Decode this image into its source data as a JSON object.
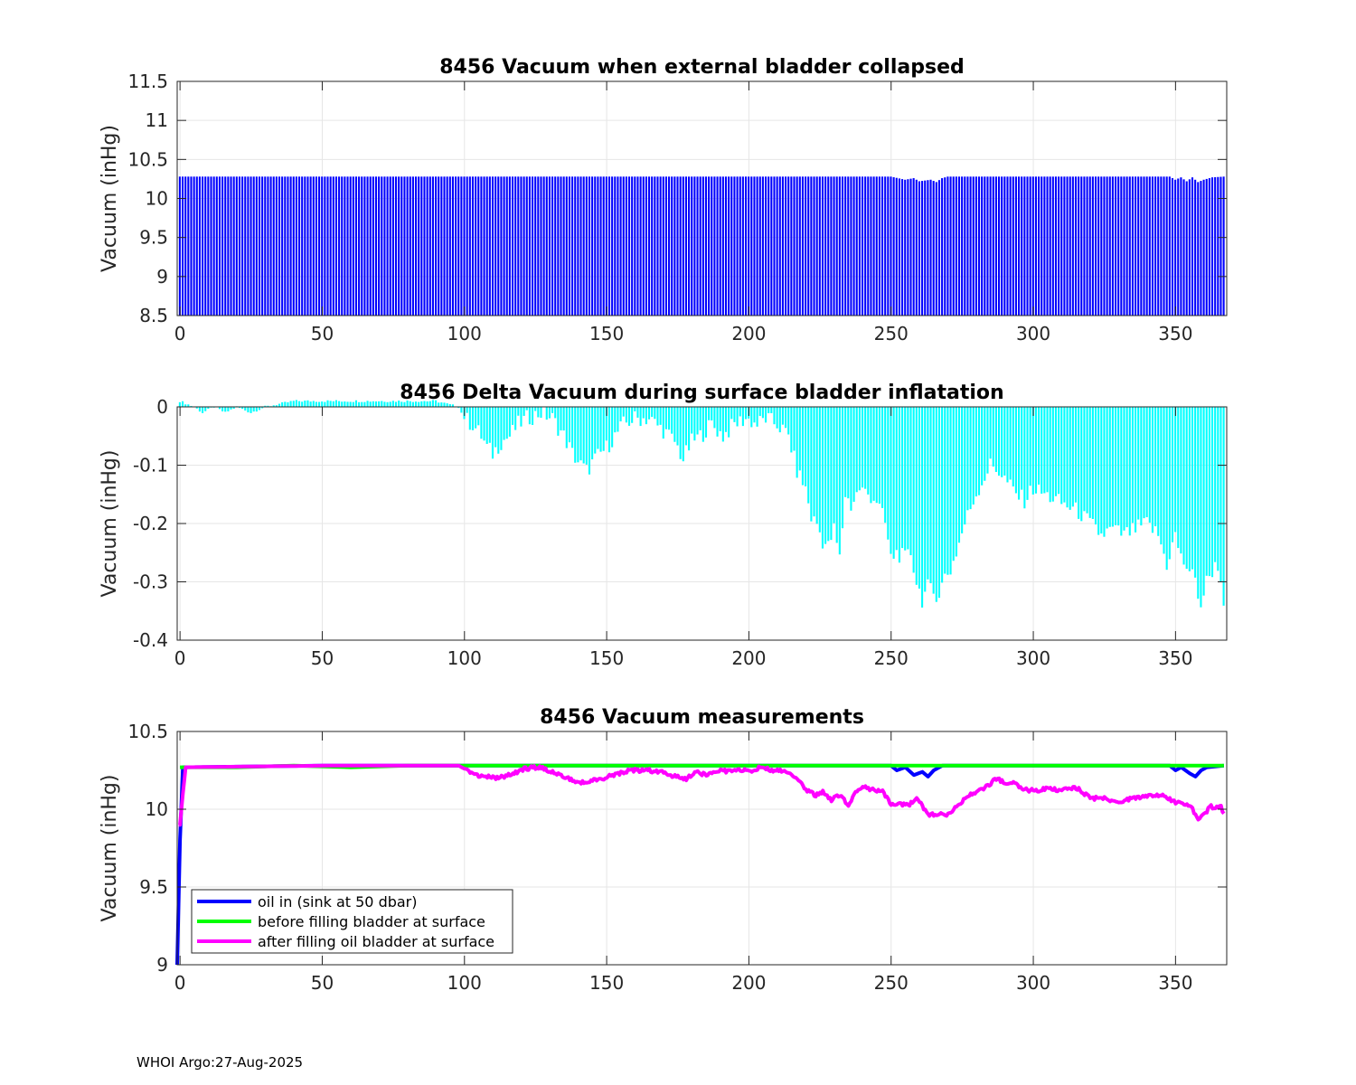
{
  "footer": "WHOI Argo:27-Aug-2025",
  "colors": {
    "oil_in": "#0000ff",
    "before_filling": "#00ff00",
    "after_filling": "#ff00ff",
    "delta_bars": "#00ffff",
    "collapsed_bars": "#0000ff",
    "grid": "#e6e6e6"
  },
  "chart_data": [
    {
      "type": "bar",
      "title": "8456 Vacuum when external bladder collapsed",
      "xlabel": "",
      "ylabel": "Vacuum (inHg)",
      "xlim": [
        -1,
        368
      ],
      "ylim": [
        8.5,
        11.5
      ],
      "xticks": [
        0,
        50,
        100,
        150,
        200,
        250,
        300,
        350
      ],
      "yticks": [
        8.5,
        9,
        9.5,
        10,
        10.5,
        11,
        11.5
      ],
      "ytick_labels": [
        "8.5",
        "9",
        "9.5",
        "10",
        "10.5",
        "11",
        "11.5"
      ],
      "grid": true,
      "series": [
        {
          "values": [
            [
              0,
              10.28
            ],
            [
              25,
              10.28
            ],
            [
              100,
              10.28
            ],
            [
              150,
              10.28
            ],
            [
              200,
              10.28
            ],
            [
              250,
              10.28
            ],
            [
              255,
              10.24
            ],
            [
              258,
              10.26
            ],
            [
              260,
              10.22
            ],
            [
              262,
              10.23
            ],
            [
              264,
              10.24
            ],
            [
              266,
              10.21
            ],
            [
              268,
              10.26
            ],
            [
              270,
              10.28
            ],
            [
              300,
              10.28
            ],
            [
              348,
              10.28
            ],
            [
              350,
              10.24
            ],
            [
              352,
              10.27
            ],
            [
              354,
              10.22
            ],
            [
              356,
              10.27
            ],
            [
              358,
              10.21
            ],
            [
              360,
              10.24
            ],
            [
              363,
              10.27
            ],
            [
              367,
              10.28
            ]
          ]
        }
      ]
    },
    {
      "type": "bar",
      "title": "8456 Delta Vacuum during surface bladder inflatation",
      "xlabel": "",
      "ylabel": "Vacuum (inHg)",
      "xlim": [
        -1,
        368
      ],
      "ylim": [
        -0.4,
        0
      ],
      "xticks": [
        0,
        50,
        100,
        150,
        200,
        250,
        300,
        350
      ],
      "yticks": [
        -0.4,
        -0.3,
        -0.2,
        -0.1,
        0
      ],
      "ytick_labels": [
        "-0.4",
        "-0.3",
        "-0.2",
        "-0.1",
        "0"
      ],
      "grid": true,
      "series": [
        {
          "values": [
            [
              0,
              0.01
            ],
            [
              5,
              0.0
            ],
            [
              8,
              -0.01
            ],
            [
              12,
              0.0
            ],
            [
              16,
              -0.01
            ],
            [
              20,
              0.0
            ],
            [
              25,
              -0.01
            ],
            [
              30,
              0.0
            ],
            [
              40,
              0.01
            ],
            [
              60,
              0.01
            ],
            [
              80,
              0.01
            ],
            [
              90,
              0.01
            ],
            [
              98,
              0.0
            ],
            [
              100,
              -0.02
            ],
            [
              103,
              -0.03
            ],
            [
              106,
              -0.05
            ],
            [
              108,
              -0.07
            ],
            [
              110,
              -0.08
            ],
            [
              113,
              -0.06
            ],
            [
              116,
              -0.05
            ],
            [
              119,
              -0.03
            ],
            [
              122,
              -0.02
            ],
            [
              127,
              -0.01
            ],
            [
              131,
              -0.02
            ],
            [
              135,
              -0.05
            ],
            [
              138,
              -0.08
            ],
            [
              141,
              -0.1
            ],
            [
              143,
              -0.11
            ],
            [
              146,
              -0.09
            ],
            [
              150,
              -0.07
            ],
            [
              153,
              -0.05
            ],
            [
              156,
              -0.03
            ],
            [
              160,
              -0.02
            ],
            [
              165,
              -0.02
            ],
            [
              170,
              -0.04
            ],
            [
              174,
              -0.06
            ],
            [
              177,
              -0.09
            ],
            [
              180,
              -0.06
            ],
            [
              183,
              -0.05
            ],
            [
              187,
              -0.03
            ],
            [
              191,
              -0.05
            ],
            [
              195,
              -0.03
            ],
            [
              199,
              -0.02
            ],
            [
              203,
              -0.03
            ],
            [
              206,
              -0.02
            ],
            [
              210,
              -0.03
            ],
            [
              214,
              -0.05
            ],
            [
              217,
              -0.11
            ],
            [
              220,
              -0.14
            ],
            [
              222,
              -0.19
            ],
            [
              224,
              -0.2
            ],
            [
              226,
              -0.23
            ],
            [
              228,
              -0.24
            ],
            [
              230,
              -0.21
            ],
            [
              232,
              -0.26
            ],
            [
              234,
              -0.15
            ],
            [
              236,
              -0.17
            ],
            [
              239,
              -0.14
            ],
            [
              242,
              -0.15
            ],
            [
              245,
              -0.16
            ],
            [
              248,
              -0.2
            ],
            [
              250,
              -0.26
            ],
            [
              252,
              -0.25
            ],
            [
              255,
              -0.26
            ],
            [
              257,
              -0.25
            ],
            [
              259,
              -0.3
            ],
            [
              261,
              -0.33
            ],
            [
              263,
              -0.31
            ],
            [
              265,
              -0.32
            ],
            [
              267,
              -0.32
            ],
            [
              269,
              -0.29
            ],
            [
              271,
              -0.28
            ],
            [
              273,
              -0.25
            ],
            [
              276,
              -0.2
            ],
            [
              279,
              -0.16
            ],
            [
              282,
              -0.13
            ],
            [
              285,
              -0.1
            ],
            [
              288,
              -0.11
            ],
            [
              291,
              -0.13
            ],
            [
              294,
              -0.15
            ],
            [
              297,
              -0.16
            ],
            [
              300,
              -0.14
            ],
            [
              304,
              -0.15
            ],
            [
              308,
              -0.16
            ],
            [
              312,
              -0.17
            ],
            [
              316,
              -0.18
            ],
            [
              320,
              -0.2
            ],
            [
              324,
              -0.22
            ],
            [
              328,
              -0.21
            ],
            [
              332,
              -0.22
            ],
            [
              336,
              -0.21
            ],
            [
              340,
              -0.2
            ],
            [
              344,
              -0.22
            ],
            [
              347,
              -0.27
            ],
            [
              350,
              -0.22
            ],
            [
              352,
              -0.26
            ],
            [
              355,
              -0.28
            ],
            [
              357,
              -0.3
            ],
            [
              359,
              -0.34
            ],
            [
              361,
              -0.3
            ],
            [
              363,
              -0.28
            ],
            [
              365,
              -0.27
            ],
            [
              367,
              -0.33
            ]
          ]
        }
      ]
    },
    {
      "type": "line",
      "title": "8456 Vacuum measurements",
      "xlabel": "",
      "ylabel": "Vacuum (inHg)",
      "xlim": [
        -1,
        368
      ],
      "ylim": [
        9,
        10.5
      ],
      "xticks": [
        0,
        50,
        100,
        150,
        200,
        250,
        300,
        350
      ],
      "yticks": [
        9,
        9.5,
        10,
        10.5
      ],
      "ytick_labels": [
        "9",
        "9.5",
        "10",
        "10.5"
      ],
      "grid": true,
      "legend_position": "bottom-left",
      "series": [
        {
          "name": "oil in (sink at 50 dbar)",
          "color": "#0000ff",
          "points": [
            [
              -1,
              9.0
            ],
            [
              0,
              9.8
            ],
            [
              1,
              10.27
            ],
            [
              50,
              10.28
            ],
            [
              100,
              10.28
            ],
            [
              150,
              10.28
            ],
            [
              200,
              10.28
            ],
            [
              250,
              10.28
            ],
            [
              252,
              10.25
            ],
            [
              255,
              10.27
            ],
            [
              258,
              10.22
            ],
            [
              261,
              10.24
            ],
            [
              263,
              10.21
            ],
            [
              265,
              10.25
            ],
            [
              268,
              10.28
            ],
            [
              300,
              10.28
            ],
            [
              348,
              10.28
            ],
            [
              350,
              10.25
            ],
            [
              352,
              10.27
            ],
            [
              355,
              10.23
            ],
            [
              357,
              10.21
            ],
            [
              359,
              10.25
            ],
            [
              361,
              10.27
            ],
            [
              367,
              10.28
            ]
          ]
        },
        {
          "name": "before filling bladder at surface",
          "color": "#00ff00",
          "points": [
            [
              0,
              10.27
            ],
            [
              20,
              10.27
            ],
            [
              40,
              10.28
            ],
            [
              60,
              10.27
            ],
            [
              80,
              10.28
            ],
            [
              100,
              10.28
            ],
            [
              150,
              10.28
            ],
            [
              200,
              10.28
            ],
            [
              250,
              10.28
            ],
            [
              300,
              10.28
            ],
            [
              350,
              10.28
            ],
            [
              367,
              10.28
            ]
          ]
        },
        {
          "name": "after filling oil bladder at surface",
          "color": "#ff00ff",
          "points": [
            [
              0,
              9.9
            ],
            [
              1,
              10.1
            ],
            [
              2,
              10.27
            ],
            [
              50,
              10.28
            ],
            [
              98,
              10.28
            ],
            [
              101,
              10.25
            ],
            [
              104,
              10.22
            ],
            [
              108,
              10.21
            ],
            [
              112,
              10.2
            ],
            [
              116,
              10.22
            ],
            [
              121,
              10.26
            ],
            [
              126,
              10.27
            ],
            [
              131,
              10.24
            ],
            [
              136,
              10.2
            ],
            [
              140,
              10.17
            ],
            [
              144,
              10.18
            ],
            [
              149,
              10.2
            ],
            [
              154,
              10.23
            ],
            [
              159,
              10.25
            ],
            [
              164,
              10.25
            ],
            [
              170,
              10.24
            ],
            [
              174,
              10.21
            ],
            [
              178,
              10.19
            ],
            [
              181,
              10.24
            ],
            [
              185,
              10.22
            ],
            [
              189,
              10.25
            ],
            [
              193,
              10.24
            ],
            [
              197,
              10.25
            ],
            [
              201,
              10.25
            ],
            [
              204,
              10.27
            ],
            [
              208,
              10.25
            ],
            [
              213,
              10.24
            ],
            [
              217,
              10.2
            ],
            [
              220,
              10.13
            ],
            [
              223,
              10.09
            ],
            [
              226,
              10.11
            ],
            [
              229,
              10.06
            ],
            [
              232,
              10.09
            ],
            [
              235,
              10.03
            ],
            [
              238,
              10.12
            ],
            [
              241,
              10.14
            ],
            [
              244,
              10.12
            ],
            [
              247,
              10.12
            ],
            [
              250,
              10.03
            ],
            [
              253,
              10.04
            ],
            [
              256,
              10.02
            ],
            [
              259,
              10.07
            ],
            [
              261,
              10.02
            ],
            [
              263,
              9.96
            ],
            [
              266,
              9.97
            ],
            [
              269,
              9.96
            ],
            [
              272,
              10.0
            ],
            [
              275,
              10.05
            ],
            [
              278,
              10.1
            ],
            [
              281,
              10.12
            ],
            [
              284,
              10.15
            ],
            [
              287,
              10.2
            ],
            [
              290,
              10.17
            ],
            [
              293,
              10.17
            ],
            [
              296,
              10.13
            ],
            [
              300,
              10.12
            ],
            [
              305,
              10.13
            ],
            [
              310,
              10.12
            ],
            [
              315,
              10.14
            ],
            [
              320,
              10.07
            ],
            [
              325,
              10.07
            ],
            [
              330,
              10.05
            ],
            [
              335,
              10.07
            ],
            [
              340,
              10.08
            ],
            [
              345,
              10.09
            ],
            [
              348,
              10.06
            ],
            [
              351,
              10.04
            ],
            [
              354,
              10.03
            ],
            [
              356,
              10.0
            ],
            [
              358,
              9.94
            ],
            [
              360,
              9.96
            ],
            [
              362,
              10.02
            ],
            [
              364,
              10.01
            ],
            [
              366,
              10.03
            ],
            [
              367,
              9.96
            ]
          ]
        }
      ]
    }
  ]
}
